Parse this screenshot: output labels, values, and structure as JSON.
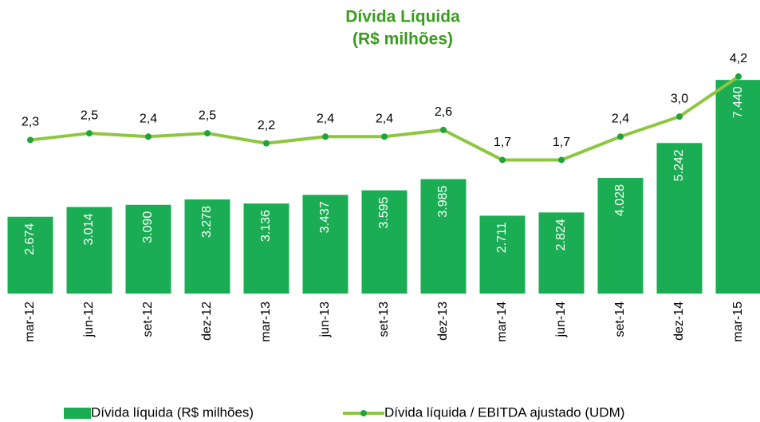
{
  "chart_data": {
    "type": "bar_line",
    "title": "Dívida Líquida",
    "subtitle": "(R$ milhões)",
    "categories": [
      "mar-12",
      "jun-12",
      "set-12",
      "dez-12",
      "mar-13",
      "jun-13",
      "set-13",
      "dez-13",
      "mar-14",
      "jun-14",
      "set-14",
      "dez-14",
      "mar-15"
    ],
    "series": [
      {
        "name": "Dívida líquida (R$ milhões)",
        "type": "bar",
        "color": "#1aad53",
        "values": [
          2674,
          3014,
          3090,
          3278,
          3136,
          3437,
          3595,
          3985,
          2711,
          2824,
          4028,
          5242,
          7440
        ],
        "value_labels": [
          "2.674",
          "3.014",
          "3.090",
          "3.278",
          "3.136",
          "3.437",
          "3.595",
          "3.985",
          "2.711",
          "2.824",
          "4.028",
          "5.242",
          "7.440"
        ]
      },
      {
        "name": "Dívida líquida / EBITDA ajustado (UDM)",
        "type": "line",
        "axis": "y2",
        "color": "#8dc63f",
        "marker_color": "#22a33a",
        "values": [
          2.3,
          2.5,
          2.4,
          2.5,
          2.2,
          2.4,
          2.4,
          2.6,
          1.7,
          1.7,
          2.4,
          3.0,
          4.2
        ],
        "value_labels": [
          "2,3",
          "2,5",
          "2,4",
          "2,5",
          "2,2",
          "2,4",
          "2,4",
          "2,6",
          "1,7",
          "1,7",
          "2,4",
          "3,0",
          "4,2"
        ]
      }
    ],
    "ylim": [
      0,
      10000
    ],
    "y2lim": [
      -2.3,
      6.3
    ]
  }
}
